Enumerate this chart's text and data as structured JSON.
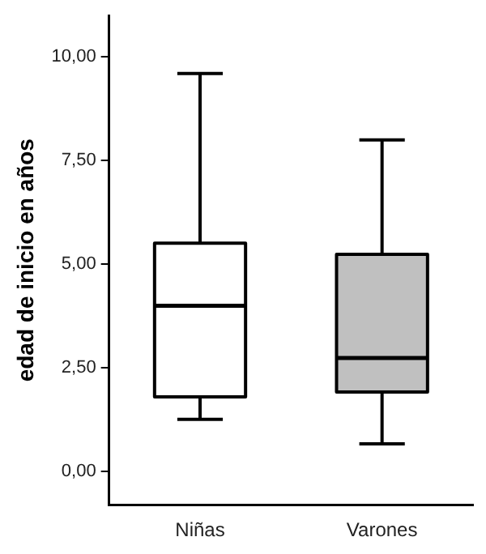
{
  "chart_data": {
    "type": "box",
    "ylabel": "edad de inicio en años",
    "categories": [
      "Niñas",
      "Varones"
    ],
    "boxes": [
      {
        "low": 1.26,
        "q1": 1.8,
        "median": 4.0,
        "q3": 5.51,
        "high": 9.6
      },
      {
        "low": 0.67,
        "q1": 1.92,
        "median": 2.74,
        "q3": 5.24,
        "high": 8.0
      }
    ],
    "colors": [
      "#ffffff",
      "#c0c0c0"
    ],
    "ylim": [
      -0.8,
      11
    ],
    "yticks": [
      {
        "value": 0,
        "label": "0,00"
      },
      {
        "value": 2.5,
        "label": "2,50"
      },
      {
        "value": 5,
        "label": "5,00"
      },
      {
        "value": 7.5,
        "label": "7,50"
      },
      {
        "value": 10,
        "label": "10,00"
      }
    ],
    "grid": false
  }
}
